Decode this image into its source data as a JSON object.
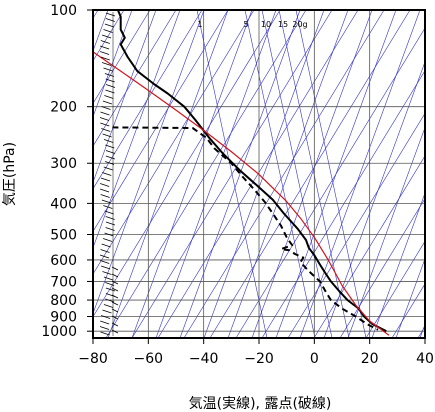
{
  "chart_data": {
    "type": "line",
    "title": "",
    "xlabel": "気温(実線), 露点(破線)",
    "ylabel": "気圧(hPa)",
    "x_scale": "linear",
    "y_scale": "log",
    "y_inverted": true,
    "xlim": [
      -80,
      40
    ],
    "ylim": [
      1050,
      100
    ],
    "x_ticks": [
      -80,
      -60,
      -40,
      -20,
      0,
      20,
      40
    ],
    "x_tick_labels": [
      "−80",
      "−60",
      "−40",
      "−20",
      "0",
      "20",
      "40"
    ],
    "y_ticks": [
      100,
      200,
      300,
      400,
      500,
      600,
      700,
      800,
      900,
      1000
    ],
    "y_tick_labels": [
      "100",
      "200",
      "300",
      "400",
      "500",
      "600",
      "700",
      "800",
      "900",
      "1000"
    ],
    "grid": true,
    "mixing_ratio_labels": [
      "1",
      "5",
      "10",
      "15",
      "20g"
    ],
    "series": [
      {
        "line": "solid",
        "color": "#000000",
        "points": [
          [
            -71,
            100
          ],
          [
            -70,
            105
          ],
          [
            -70,
            115
          ],
          [
            -68.5,
            122
          ],
          [
            -70,
            128
          ],
          [
            -67.5,
            140
          ],
          [
            -64,
            155
          ],
          [
            -58,
            170
          ],
          [
            -53,
            182
          ],
          [
            -47,
            200
          ],
          [
            -43,
            220
          ],
          [
            -38,
            250
          ],
          [
            -33,
            280
          ],
          [
            -27,
            315
          ],
          [
            -21,
            350
          ],
          [
            -15,
            390
          ],
          [
            -11,
            430
          ],
          [
            -6,
            480
          ],
          [
            -3,
            520
          ],
          [
            -2,
            550
          ],
          [
            0,
            580
          ],
          [
            2,
            620
          ],
          [
            4,
            660
          ],
          [
            6,
            700
          ],
          [
            9,
            750
          ],
          [
            12,
            800
          ],
          [
            16,
            850
          ],
          [
            18,
            900
          ],
          [
            21,
            950
          ],
          [
            26,
            1000
          ]
        ]
      },
      {
        "line": "dashed",
        "color": "#000000",
        "points": [
          [
            -73,
            232
          ],
          [
            -44,
            233
          ],
          [
            -39,
            250
          ],
          [
            -36,
            270
          ],
          [
            -30,
            300
          ],
          [
            -26,
            330
          ],
          [
            -22,
            360
          ],
          [
            -18,
            395
          ],
          [
            -15,
            430
          ],
          [
            -12,
            470
          ],
          [
            -10,
            510
          ],
          [
            -9,
            525
          ],
          [
            -8,
            540
          ],
          [
            -12,
            555
          ],
          [
            -9,
            560
          ],
          [
            -7,
            575
          ],
          [
            -4,
            590
          ],
          [
            -5,
            610
          ],
          [
            -2,
            650
          ],
          [
            2,
            700
          ],
          [
            4,
            750
          ],
          [
            6,
            800
          ],
          [
            10,
            850
          ],
          [
            15,
            900
          ],
          [
            19,
            950
          ],
          [
            23,
            990
          ]
        ]
      },
      {
        "line": "solid",
        "color": "#d0141c",
        "points": [
          [
            -80,
            135
          ],
          [
            -70,
            155
          ],
          [
            -60,
            178
          ],
          [
            -50,
            205
          ],
          [
            -40,
            237
          ],
          [
            -30,
            276
          ],
          [
            -20,
            325
          ],
          [
            -10,
            395
          ],
          [
            -5,
            445
          ],
          [
            0,
            510
          ],
          [
            5,
            600
          ],
          [
            10,
            720
          ],
          [
            15,
            830
          ],
          [
            20,
            930
          ],
          [
            27,
            1030
          ]
        ]
      }
    ],
    "colors": {
      "grid": "#555555",
      "thin_lines": "#3333cc",
      "dry_adiabat": "#d0141c"
    }
  }
}
